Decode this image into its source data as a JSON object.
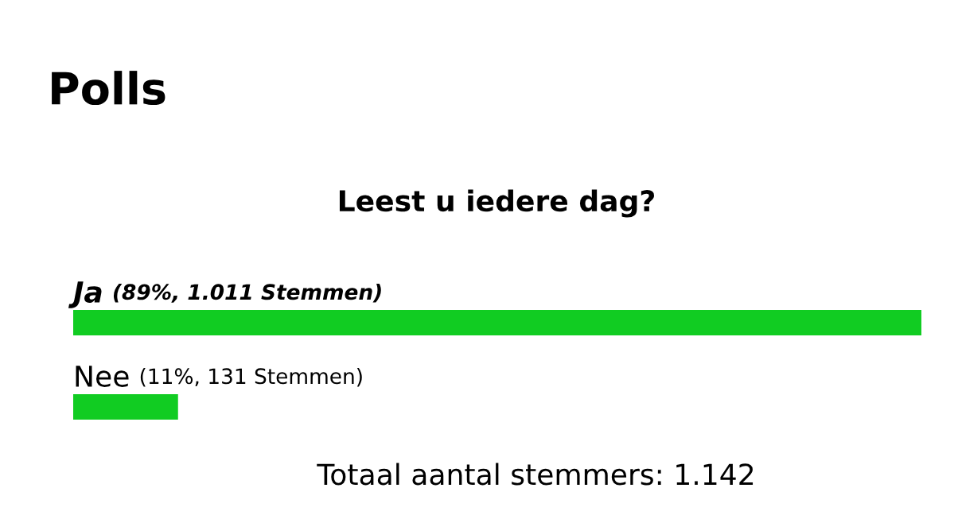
{
  "chart_data": {
    "type": "bar",
    "orientation": "horizontal",
    "title": "Polls",
    "subtitle": "Leest u iedere dag?",
    "categories": [
      "Ja",
      "Nee"
    ],
    "values": [
      89,
      11
    ],
    "value_labels": [
      "(89%, 1.011 Stemmen)",
      "(11%, 131 Stemmen)"
    ],
    "color": "#11cc22",
    "annotations": [
      "Totaal aantal stemmers: 1.142"
    ]
  }
}
